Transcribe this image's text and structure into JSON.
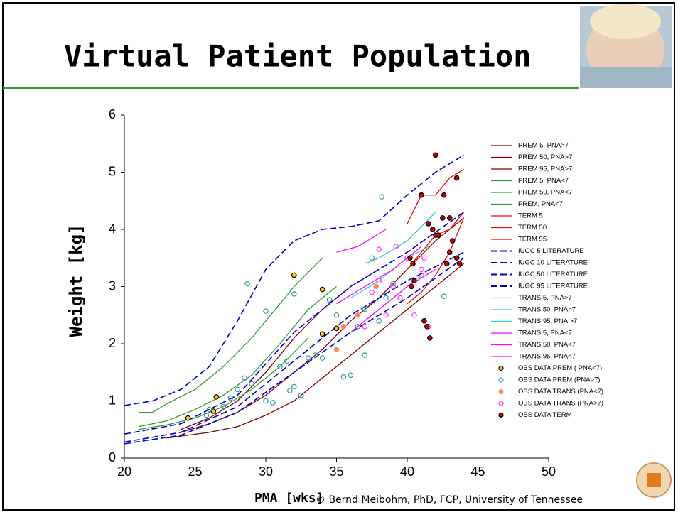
{
  "slide": {
    "title": "Virtual Patient Population",
    "footer": "© Bernd Meibohm, PhD, FCP, University of Tennessee"
  },
  "chart_data": {
    "type": "line",
    "x_label": "PMA [wks]",
    "y_label": "Weight [kg]",
    "xlim": [
      20,
      50
    ],
    "xticks": [
      20,
      25,
      30,
      35,
      40,
      45,
      50
    ],
    "ylim": [
      0,
      6
    ],
    "yticks": [
      0,
      1,
      2,
      3,
      4,
      5,
      6
    ],
    "series": [
      {
        "name": "PREM 5, PNA>7",
        "type": "line",
        "color": "#800000",
        "x": [
          23,
          26,
          28,
          30,
          32,
          34,
          36,
          38,
          40,
          42,
          44
        ],
        "values": [
          0.35,
          0.45,
          0.55,
          0.75,
          1.0,
          1.4,
          1.8,
          2.2,
          2.6,
          3.0,
          3.4
        ]
      },
      {
        "name": "PREM 50, PNA>7",
        "type": "line",
        "color": "#800000",
        "x": [
          24,
          26,
          28,
          30,
          32,
          34,
          36,
          38,
          40,
          42,
          44
        ],
        "values": [
          0.45,
          0.6,
          0.8,
          1.1,
          1.5,
          1.9,
          2.4,
          2.8,
          3.3,
          3.8,
          4.2
        ]
      },
      {
        "name": "PREM 95, PNA>7",
        "type": "line",
        "color": "#800000",
        "x": [
          24,
          26,
          28,
          30,
          32,
          34,
          36,
          38
        ],
        "values": [
          0.5,
          0.7,
          1.0,
          1.5,
          2.1,
          2.6,
          3.0,
          3.3
        ]
      },
      {
        "name": "PREM 5, PNA<7",
        "type": "line",
        "color": "#339933",
        "x": [
          21,
          23,
          25,
          27,
          29,
          31,
          33
        ],
        "values": [
          0.5,
          0.58,
          0.7,
          0.9,
          1.2,
          1.6,
          2.1
        ]
      },
      {
        "name": "PREM 50, PNA<7",
        "type": "line",
        "color": "#339933",
        "x": [
          21,
          23,
          25,
          27,
          29,
          31,
          33,
          35
        ],
        "values": [
          0.55,
          0.65,
          0.85,
          1.1,
          1.45,
          2.0,
          2.6,
          3.0
        ]
      },
      {
        "name": "PREM, PNA<7",
        "type": "line",
        "color": "#339933",
        "x": [
          21,
          22,
          23,
          25,
          27,
          29,
          31,
          32,
          34
        ],
        "values": [
          0.8,
          0.8,
          0.95,
          1.2,
          1.6,
          2.1,
          2.7,
          3.0,
          3.5
        ]
      },
      {
        "name": "TERM 5",
        "type": "line",
        "color": "#ff0000",
        "x": [
          40,
          41,
          42,
          43,
          44
        ],
        "values": [
          2.7,
          2.9,
          3.2,
          3.6,
          4.2
        ]
      },
      {
        "name": "TERM 50",
        "type": "line",
        "color": "#ff0000",
        "x": [
          40,
          41,
          42,
          43,
          44
        ],
        "values": [
          3.3,
          3.6,
          3.9,
          4.0,
          4.3
        ]
      },
      {
        "name": "TERM 95",
        "type": "line",
        "color": "#ff0000",
        "x": [
          40,
          41,
          42,
          43,
          44
        ],
        "values": [
          4.1,
          4.6,
          4.6,
          4.9,
          5.05
        ]
      },
      {
        "name": "IUGC 5 LITERATURE",
        "type": "line",
        "dash": true,
        "color": "#0000cc",
        "x": [
          20,
          24,
          28,
          32,
          36,
          40,
          44
        ],
        "values": [
          0.25,
          0.4,
          0.8,
          1.5,
          2.2,
          2.8,
          3.5
        ]
      },
      {
        "name": "IUGC 10 LITERATURE",
        "type": "line",
        "dash": true,
        "color": "#0000cc",
        "x": [
          20,
          24,
          28,
          32,
          36,
          40,
          44
        ],
        "values": [
          0.28,
          0.45,
          0.9,
          1.7,
          2.5,
          3.1,
          3.6
        ]
      },
      {
        "name": "IUGC 50 LITERATURE",
        "type": "line",
        "dash": true,
        "color": "#0000cc",
        "x": [
          20,
          24,
          28,
          32,
          36,
          40,
          44
        ],
        "values": [
          0.42,
          0.6,
          1.1,
          2.2,
          3.0,
          3.6,
          4.3
        ]
      },
      {
        "name": "IUGC 95 LITERATURE",
        "type": "line",
        "dash": true,
        "color": "#0000cc",
        "x": [
          20,
          22,
          24,
          26,
          28,
          30,
          32,
          34,
          36,
          38,
          40,
          42,
          44
        ],
        "values": [
          0.92,
          1.0,
          1.2,
          1.6,
          2.4,
          3.3,
          3.8,
          4.0,
          4.05,
          4.15,
          4.6,
          5.0,
          5.3
        ]
      },
      {
        "name": "TRANS 5, PNA>7",
        "type": "line",
        "color": "#33cccc",
        "x": [
          37,
          38,
          39,
          40,
          41
        ],
        "values": [
          2.4,
          2.6,
          2.8,
          3.0,
          3.2
        ]
      },
      {
        "name": "TRANS 50, PNA>7",
        "type": "line",
        "color": "#33cccc",
        "x": [
          36,
          38,
          40,
          41.5
        ],
        "values": [
          2.8,
          3.1,
          3.5,
          3.7
        ]
      },
      {
        "name": "TRANS 95, PNA >7",
        "type": "line",
        "color": "#33cccc",
        "x": [
          37,
          38,
          40,
          42
        ],
        "values": [
          3.4,
          3.5,
          3.8,
          4.3
        ]
      },
      {
        "name": "TRANS 5, PNA<7",
        "type": "line",
        "color": "#ff00ff",
        "x": [
          36,
          38,
          40,
          42
        ],
        "values": [
          2.2,
          2.6,
          3.0,
          3.3
        ]
      },
      {
        "name": "TRANS 50, PNA<7",
        "type": "line",
        "color": "#ff00ff",
        "x": [
          35,
          37,
          39,
          41
        ],
        "values": [
          2.7,
          3.0,
          3.3,
          3.7
        ]
      },
      {
        "name": "TRANS 95, PNA<7",
        "type": "line",
        "color": "#ff00ff",
        "x": [
          35,
          36.5,
          38.5
        ],
        "values": [
          3.6,
          3.7,
          4.0
        ]
      },
      {
        "name": "OBS DATA PREM ( PNA<7)",
        "type": "scatter",
        "color": "#000000",
        "fill": "#ffcc00",
        "x": [
          24.5,
          26.5,
          26.3,
          32,
          34,
          34,
          35
        ],
        "values": [
          0.7,
          1.07,
          0.82,
          3.2,
          2.95,
          2.17,
          2.27
        ]
      },
      {
        "name": "OBS DATA PREM (PNA>7)",
        "type": "scatter",
        "color": "#339999",
        "fill": "none",
        "x": [
          25.8,
          26,
          27,
          27.5,
          28,
          28.5,
          28.7,
          29,
          30,
          30.5,
          31,
          31.5,
          32,
          32,
          32.5,
          33,
          33.5,
          34,
          34.5,
          35,
          35.5,
          36,
          36.5,
          37,
          37,
          37.5,
          38,
          38.2,
          38.5,
          39,
          42.6,
          30,
          31.7
        ],
        "values": [
          0.75,
          0.85,
          0.9,
          1.05,
          1.2,
          1.4,
          3.05,
          1.3,
          2.57,
          0.97,
          1.6,
          1.7,
          2.87,
          1.25,
          1.1,
          1.75,
          1.8,
          1.75,
          2.77,
          2.5,
          1.42,
          1.45,
          2.3,
          2.6,
          1.8,
          3.5,
          2.4,
          4.57,
          2.8,
          3.05,
          2.83,
          1.0,
          1.18
        ]
      },
      {
        "name": "OBS DATA TRANS (PNA<7)",
        "type": "scatter",
        "color": "#ff9966",
        "fill": "#ff7f50",
        "x": [
          35,
          35.5,
          36.5,
          37.8
        ],
        "values": [
          1.9,
          2.3,
          2.5,
          3.0
        ]
      },
      {
        "name": "OBS DATA TRANS (PNA>7)",
        "type": "scatter",
        "color": "#ff33ff",
        "fill": "none",
        "x": [
          37,
          37.5,
          38,
          38.5,
          39,
          39.5,
          40,
          40.5,
          41,
          41,
          41.2,
          41.5,
          38,
          39.2
        ],
        "values": [
          2.3,
          2.9,
          3.1,
          2.5,
          3.0,
          2.8,
          3.5,
          2.5,
          3.3,
          3.2,
          3.5,
          2.3,
          3.65,
          3.7
        ]
      },
      {
        "name": "OBS DATA TERM",
        "type": "scatter",
        "color": "#000000",
        "fill": "#cc0000",
        "x": [
          40.2,
          40.4,
          40.5,
          40.3,
          41,
          41.2,
          41.5,
          41.6,
          41.8,
          42,
          42.2,
          42.5,
          42.6,
          42.8,
          43,
          43,
          43.2,
          43.5,
          43.5,
          43.7,
          42,
          41.4
        ],
        "values": [
          3.5,
          3.4,
          3.1,
          3.0,
          4.6,
          2.4,
          4.1,
          2.1,
          4.0,
          3.9,
          3.9,
          4.2,
          4.6,
          3.4,
          3.6,
          4.2,
          3.8,
          3.5,
          4.9,
          3.4,
          5.3,
          2.3
        ]
      }
    ]
  }
}
